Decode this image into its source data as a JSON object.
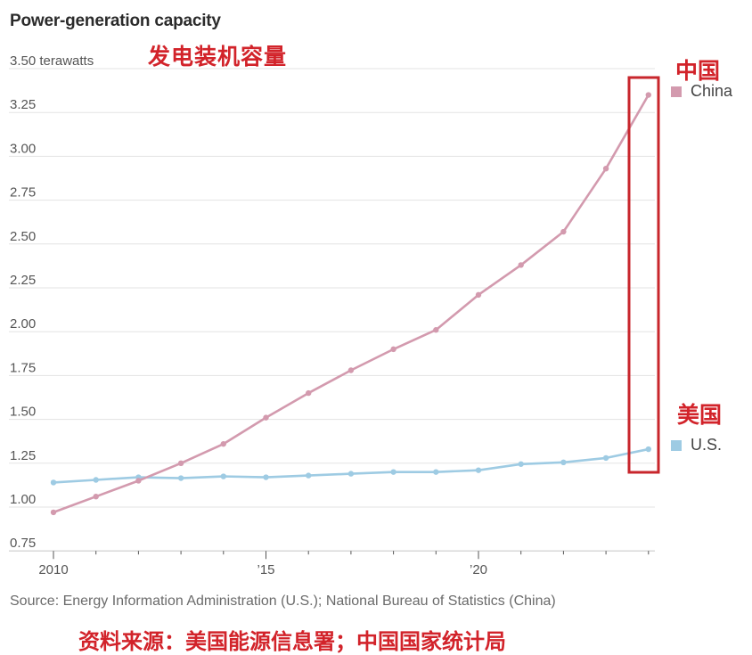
{
  "header": {
    "title": "Power-generation capacity",
    "title_cn": "发电装机容量"
  },
  "annotations": {
    "china_cn": "中国",
    "us_cn": "美国",
    "highlight_box_color": "#c8262c"
  },
  "legend": {
    "china": {
      "label": "China",
      "color": "#d39aae"
    },
    "us": {
      "label": "U.S.",
      "color": "#9ecbe3"
    }
  },
  "footer": {
    "source": "Source: Energy Information Administration (U.S.); National Bureau of Statistics (China)",
    "source_cn": "资料来源：美国能源信息署；中国国家统计局"
  },
  "chart_data": {
    "type": "line",
    "title": "Power-generation capacity",
    "subtitle": "发电装机容量",
    "xlabel": "",
    "ylabel": "terawatts",
    "x": [
      2010,
      2011,
      2012,
      2013,
      2014,
      2015,
      2016,
      2017,
      2018,
      2019,
      2020,
      2021,
      2022,
      2023,
      2024
    ],
    "x_tick_labels": [
      {
        "x": 2010,
        "label": "2010"
      },
      {
        "x": 2015,
        "label": "'15"
      },
      {
        "x": 2020,
        "label": "'20"
      }
    ],
    "ylim": [
      0.75,
      3.5
    ],
    "y_ticks": [
      3.5,
      3.25,
      3.0,
      2.75,
      2.5,
      2.25,
      2.0,
      1.75,
      1.5,
      1.25,
      1.0,
      0.75
    ],
    "y_tick_labels": [
      "3.50 terawatts",
      "3.25",
      "3.00",
      "2.75",
      "2.50",
      "2.25",
      "2.00",
      "1.75",
      "1.50",
      "1.25",
      "1.00",
      "0.75"
    ],
    "grid": true,
    "legend_position": "right",
    "series": [
      {
        "name": "China",
        "color": "#d39aae",
        "values": [
          0.97,
          1.06,
          1.15,
          1.25,
          1.36,
          1.51,
          1.65,
          1.78,
          1.9,
          2.01,
          2.21,
          2.38,
          2.57,
          2.93,
          3.35
        ]
      },
      {
        "name": "U.S.",
        "color": "#9ecbe3",
        "values": [
          1.14,
          1.155,
          1.17,
          1.165,
          1.175,
          1.17,
          1.18,
          1.19,
          1.2,
          1.2,
          1.21,
          1.245,
          1.255,
          1.28,
          1.33
        ]
      }
    ],
    "annotations": [
      {
        "type": "highlight-box",
        "x": 2024,
        "note": "red rectangle around 2024 values"
      }
    ]
  }
}
